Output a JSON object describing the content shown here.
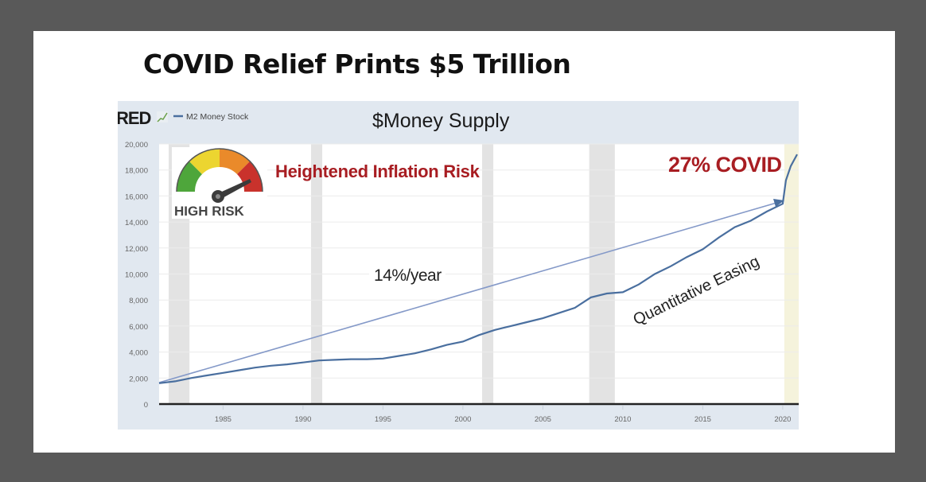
{
  "slide": {
    "title": "COVID Relief Prints $5 Trillion"
  },
  "header": {
    "brand": "RED",
    "legend_label": "M2 Money Stock",
    "chart_title": "$Money Supply"
  },
  "annotations": {
    "gauge_label": "HIGH RISK",
    "risk_text": "Heightened Inflation Risk",
    "covid_text": "27% COVID",
    "trend_text": "14%/year",
    "qe_text": "Quantitative Easing"
  },
  "colors": {
    "background": "#595959",
    "chart_frame": "#e1e8f0",
    "series_line": "#4a6f9f",
    "trend_arrow": "#8499c8",
    "recession_band": "#e3e3e3",
    "covid_band": "#f5f3dc",
    "accent_red": "#a81d22",
    "gauge_green": "#4ea63b",
    "gauge_yellow": "#ecd530",
    "gauge_orange": "#ea8a2a",
    "gauge_red": "#c9322c"
  },
  "axes": {
    "y_ticks": [
      "0",
      "2,000",
      "4,000",
      "6,000",
      "8,000",
      "10,000",
      "12,000",
      "14,000",
      "16,000",
      "18,000",
      "20,000"
    ],
    "x_ticks": [
      "1985",
      "1990",
      "1995",
      "2000",
      "2005",
      "2010",
      "2015",
      "2020"
    ]
  },
  "chart_data": {
    "type": "line",
    "title": "$Money Supply",
    "subtitle": "COVID Relief Prints $5 Trillion",
    "xlabel": "",
    "ylabel": "",
    "xlim": [
      1981,
      2021
    ],
    "ylim": [
      0,
      20000
    ],
    "grid": true,
    "legend_position": "top-left",
    "x_tick_labels": [
      "1985",
      "1990",
      "1995",
      "2000",
      "2005",
      "2010",
      "2015",
      "2020"
    ],
    "y_tick_labels": [
      "0",
      "2,000",
      "4,000",
      "6,000",
      "8,000",
      "10,000",
      "12,000",
      "14,000",
      "16,000",
      "18,000",
      "20,000"
    ],
    "series": [
      {
        "name": "M2 Money Stock",
        "x": [
          1981,
          1982,
          1983,
          1984,
          1985,
          1986,
          1987,
          1988,
          1989,
          1990,
          1991,
          1992,
          1993,
          1994,
          1995,
          1996,
          1997,
          1998,
          1999,
          2000,
          2001,
          2002,
          2003,
          2004,
          2005,
          2006,
          2007,
          2008,
          2009,
          2010,
          2011,
          2012,
          2013,
          2014,
          2015,
          2016,
          2017,
          2018,
          2019,
          2020.0,
          2020.2,
          2020.5,
          2020.9
        ],
        "values": [
          1600,
          1750,
          2000,
          2200,
          2400,
          2600,
          2800,
          2950,
          3050,
          3200,
          3350,
          3400,
          3450,
          3450,
          3500,
          3700,
          3900,
          4200,
          4550,
          4800,
          5300,
          5700,
          6000,
          6300,
          6600,
          7000,
          7400,
          8200,
          8500,
          8600,
          9200,
          10000,
          10600,
          11300,
          11900,
          12800,
          13600,
          14100,
          14800,
          15400,
          17200,
          18300,
          19200
        ]
      }
    ],
    "shaded_regions": [
      {
        "label": "recession",
        "from": 1981.6,
        "to": 1982.9
      },
      {
        "label": "recession",
        "from": 1990.5,
        "to": 1991.2
      },
      {
        "label": "recession",
        "from": 2001.2,
        "to": 2001.9
      },
      {
        "label": "recession",
        "from": 2007.9,
        "to": 2009.5
      },
      {
        "label": "covid",
        "from": 2020.1,
        "to": 2021
      }
    ],
    "annotations": [
      {
        "text": "Heightened Inflation Risk",
        "type": "label",
        "x": 1988,
        "y": 18000
      },
      {
        "text": "HIGH RISK",
        "type": "gauge-icon",
        "x": 1983,
        "y": 17500
      },
      {
        "text": "27% COVID",
        "type": "label",
        "x": 2017,
        "y": 18600
      },
      {
        "text": "14%/year",
        "type": "arrow",
        "from": [
          1981,
          1700
        ],
        "to": [
          2020,
          15700
        ]
      },
      {
        "text": "Quantitative Easing",
        "type": "rotated-label",
        "x": 2013,
        "y": 8500
      }
    ]
  }
}
